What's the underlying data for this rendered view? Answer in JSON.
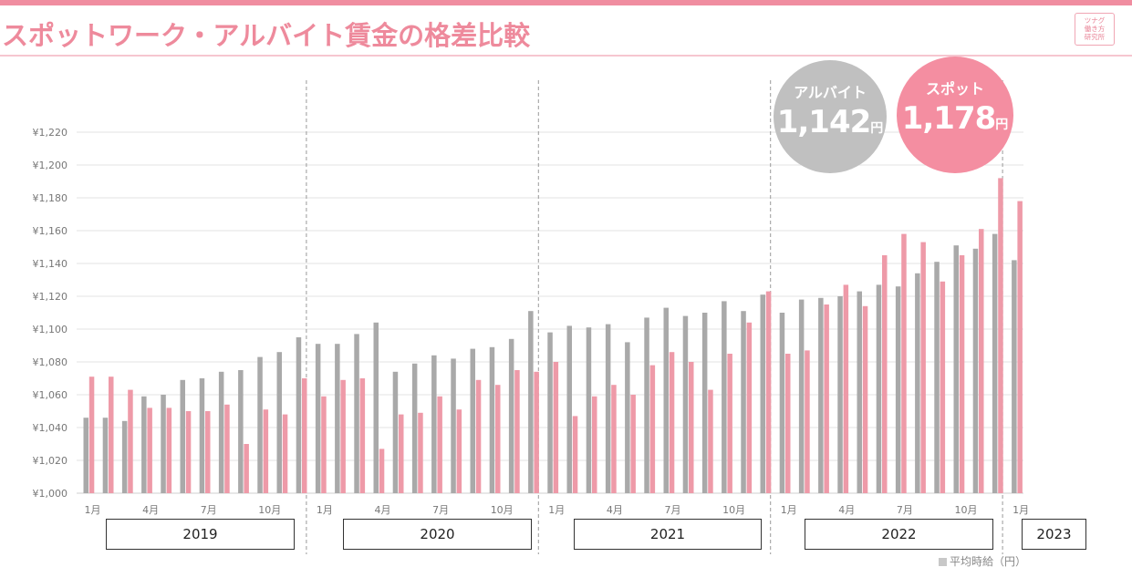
{
  "title": "スポットワーク・アルバイト賃金の格差比較",
  "logo": {
    "lines": [
      "ツナグ",
      "働き方",
      "研究所"
    ]
  },
  "bubbles": {
    "arubaito": {
      "label": "アルバイト",
      "value": "1,142",
      "unit": "円",
      "color": "#c0c0c0"
    },
    "spot": {
      "label": "スポット",
      "value": "1,178",
      "unit": "円",
      "color": "#f48ea1"
    }
  },
  "legend": {
    "label": "平均時給（円）"
  },
  "years": [
    "2019",
    "2020",
    "2021",
    "2022",
    "2023"
  ],
  "chart_data": {
    "type": "bar",
    "ylim": [
      1000,
      1220
    ],
    "yticks": [
      1000,
      1020,
      1040,
      1060,
      1080,
      1100,
      1120,
      1140,
      1160,
      1180,
      1200,
      1220
    ],
    "ytick_labels": [
      "¥1,000",
      "¥1,020",
      "¥1,040",
      "¥1,060",
      "¥1,080",
      "¥1,100",
      "¥1,120",
      "¥1,140",
      "¥1,160",
      "¥1,180",
      "¥1,200",
      "¥1,220"
    ],
    "grid": true,
    "categories": [
      "2019-01",
      "2019-02",
      "2019-03",
      "2019-04",
      "2019-05",
      "2019-06",
      "2019-07",
      "2019-08",
      "2019-09",
      "2019-10",
      "2019-11",
      "2019-12",
      "2020-01",
      "2020-02",
      "2020-03",
      "2020-04",
      "2020-05",
      "2020-06",
      "2020-07",
      "2020-08",
      "2020-09",
      "2020-10",
      "2020-11",
      "2020-12",
      "2021-01",
      "2021-02",
      "2021-03",
      "2021-04",
      "2021-05",
      "2021-06",
      "2021-07",
      "2021-08",
      "2021-09",
      "2021-10",
      "2021-11",
      "2021-12",
      "2022-01",
      "2022-02",
      "2022-03",
      "2022-04",
      "2022-05",
      "2022-06",
      "2022-07",
      "2022-08",
      "2022-09",
      "2022-10",
      "2022-11",
      "2022-12",
      "2023-01"
    ],
    "x_tick_labels": [
      {
        "index": 0,
        "label": "1月"
      },
      {
        "index": 3,
        "label": "4月"
      },
      {
        "index": 6,
        "label": "7月"
      },
      {
        "index": 9,
        "label": "10月"
      },
      {
        "index": 12,
        "label": "1月"
      },
      {
        "index": 15,
        "label": "4月"
      },
      {
        "index": 18,
        "label": "7月"
      },
      {
        "index": 21,
        "label": "10月"
      },
      {
        "index": 24,
        "label": "1月"
      },
      {
        "index": 27,
        "label": "4月"
      },
      {
        "index": 30,
        "label": "7月"
      },
      {
        "index": 33,
        "label": "10月"
      },
      {
        "index": 36,
        "label": "1月"
      },
      {
        "index": 39,
        "label": "4月"
      },
      {
        "index": 42,
        "label": "7月"
      },
      {
        "index": 45,
        "label": "10月"
      },
      {
        "index": 48,
        "label": "1月"
      }
    ],
    "year_dividers_after_index": [
      11,
      23,
      35,
      47
    ],
    "series": [
      {
        "color": "#a9a9a9",
        "values": [
          1046,
          1046,
          1044,
          1059,
          1060,
          1069,
          1070,
          1074,
          1075,
          1083,
          1086,
          1095,
          1091,
          1091,
          1097,
          1104,
          1074,
          1079,
          1084,
          1082,
          1088,
          1089,
          1094,
          1111,
          1098,
          1102,
          1101,
          1103,
          1092,
          1107,
          1113,
          1108,
          1110,
          1117,
          1111,
          1121,
          1110,
          1118,
          1119,
          1120,
          1123,
          1127,
          1126,
          1134,
          1141,
          1151,
          1149,
          1158,
          1142
        ]
      },
      {
        "color": "#ee9aa8",
        "values": [
          1071,
          1071,
          1063,
          1052,
          1052,
          1050,
          1050,
          1054,
          1030,
          1051,
          1048,
          1070,
          1059,
          1069,
          1070,
          1027,
          1048,
          1049,
          1059,
          1051,
          1069,
          1066,
          1075,
          1074,
          1080,
          1047,
          1059,
          1066,
          1060,
          1078,
          1086,
          1080,
          1063,
          1085,
          1104,
          1123,
          1085,
          1087,
          1115,
          1127,
          1114,
          1145,
          1158,
          1153,
          1129,
          1145,
          1161,
          1192,
          1178
        ]
      }
    ]
  }
}
